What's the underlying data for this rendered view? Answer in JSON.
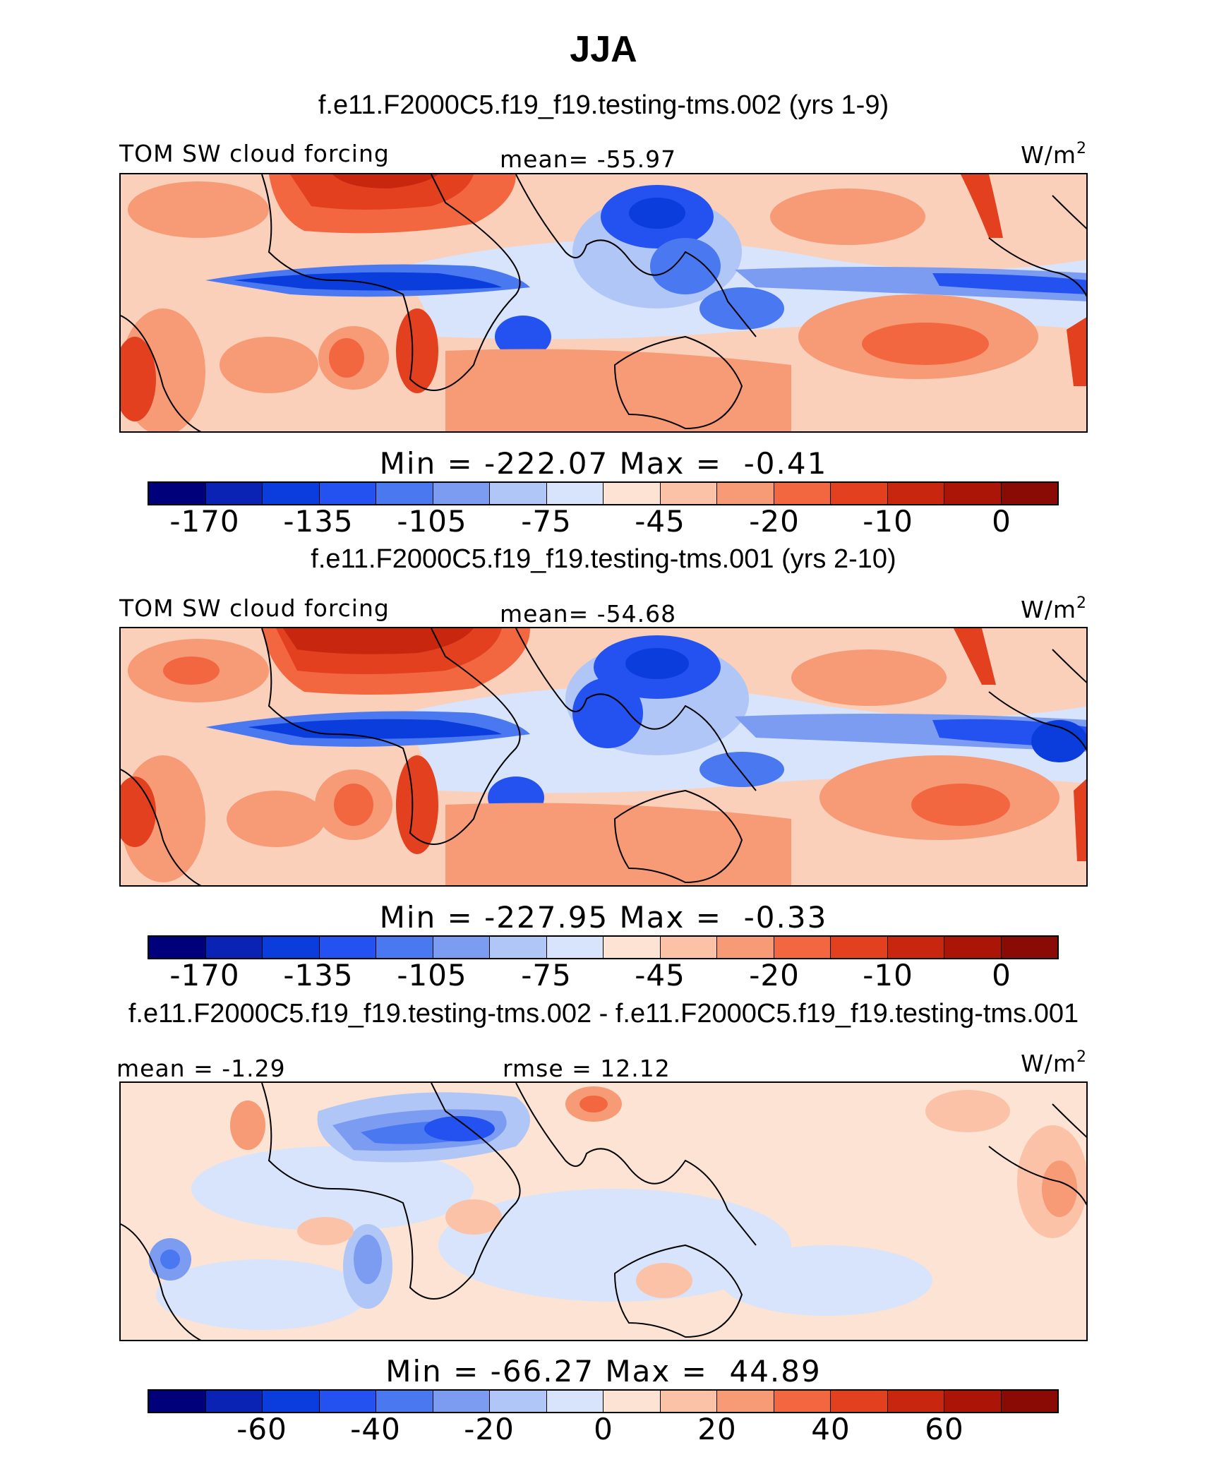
{
  "season": "JJA",
  "panels": [
    {
      "title": "f.e11.F2000C5.f19_f19.testing-tms.002 (yrs 1-9)",
      "left_label": "TOM SW cloud forcing",
      "center_label": "mean= -55.97",
      "units": "W/m",
      "units_sup": "2",
      "minmax": "Min = -222.07 Max =  -0.41",
      "colorbar_ticks": [
        "-170",
        "-135",
        "-105",
        "-75",
        "-45",
        "-20",
        "-10",
        "0"
      ]
    },
    {
      "title": "f.e11.F2000C5.f19_f19.testing-tms.001 (yrs 2-10)",
      "left_label": "TOM SW cloud forcing",
      "center_label": "mean= -54.68",
      "units": "W/m",
      "units_sup": "2",
      "minmax": "Min = -227.95 Max =  -0.33",
      "colorbar_ticks": [
        "-170",
        "-135",
        "-105",
        "-75",
        "-45",
        "-20",
        "-10",
        "0"
      ]
    },
    {
      "title": "f.e11.F2000C5.f19_f19.testing-tms.002 - f.e11.F2000C5.f19_f19.testing-tms.001",
      "left_label": "mean =  -1.29",
      "center_label": "rmse =  12.12",
      "units": "W/m",
      "units_sup": "2",
      "minmax": "Min = -66.27 Max =  44.89",
      "colorbar_ticks": [
        "-60",
        "-40",
        "-20",
        "0",
        "20",
        "40",
        "60"
      ]
    }
  ],
  "colors": {
    "colorbar": [
      "#00007a",
      "#0a23b4",
      "#0b3ddc",
      "#2352f0",
      "#4a78f0",
      "#7c9cf2",
      "#b0c6f6",
      "#d7e4fb",
      "#fde3d3",
      "#fbc2a8",
      "#f79a76",
      "#f2673f",
      "#e2401e",
      "#c8260f",
      "#aa1508",
      "#8a0b05"
    ]
  }
}
